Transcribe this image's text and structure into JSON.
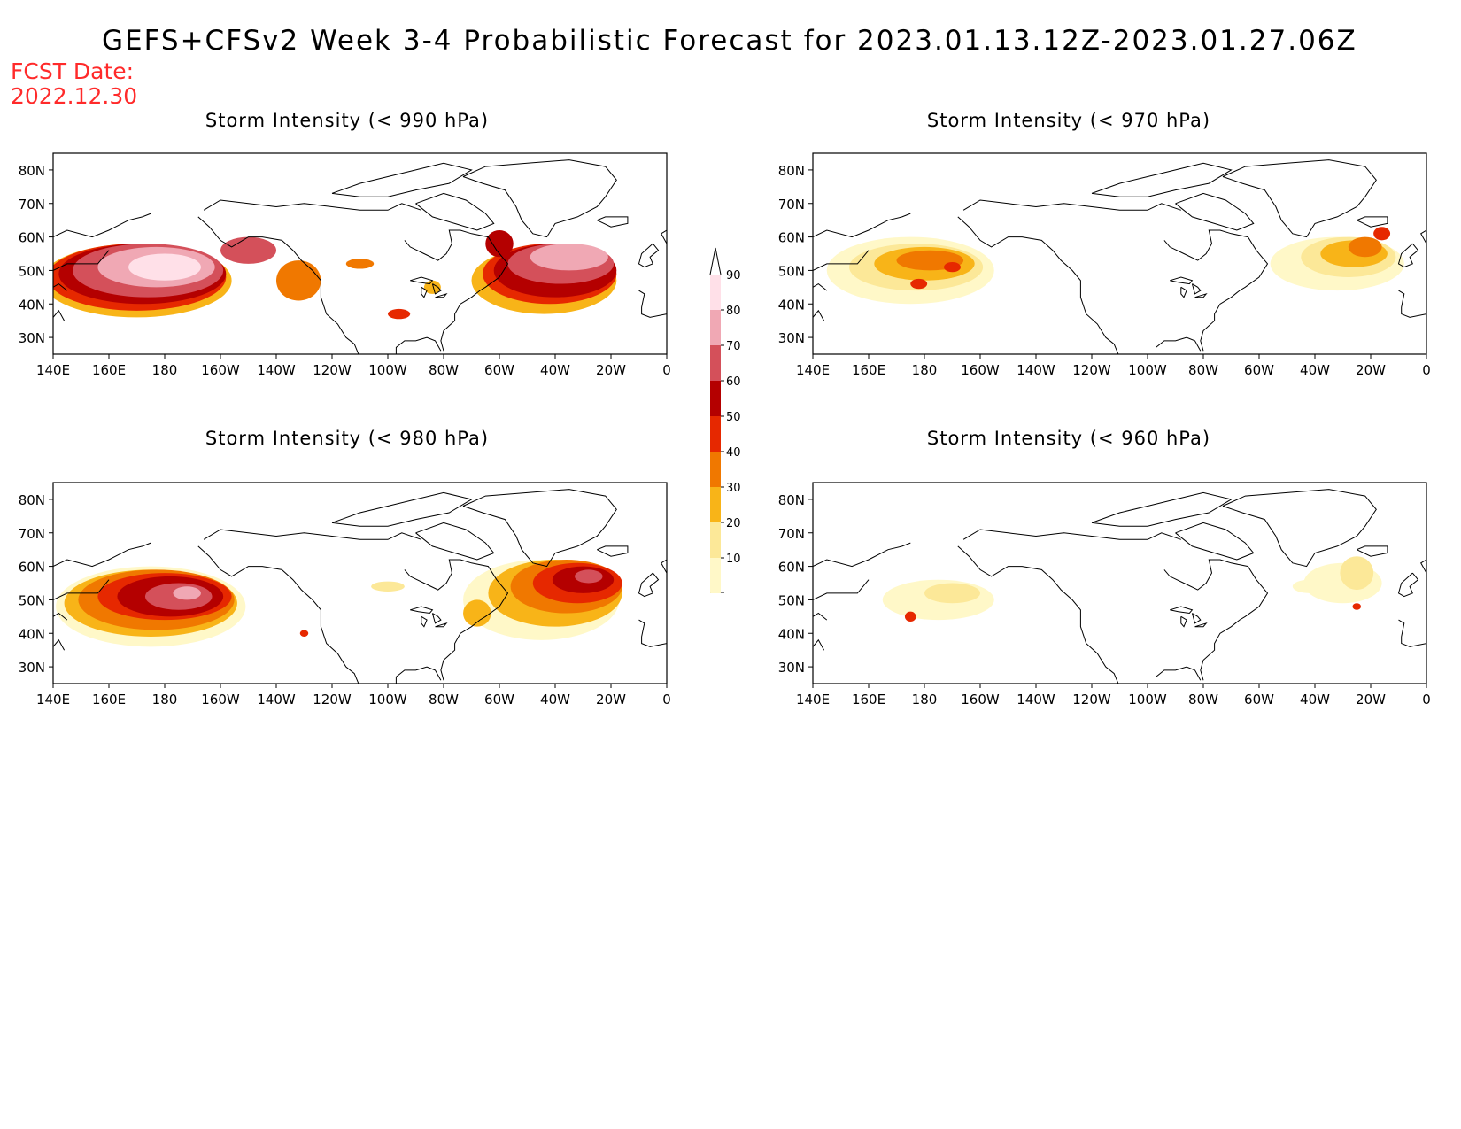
{
  "header": {
    "title": "GEFS+CFSv2 Week 3-4 Probabilistic Forecast for 2023.01.13.12Z-2023.01.27.06Z",
    "fcst_label": "FCST Date:",
    "fcst_date": "2022.12.30"
  },
  "panels": [
    {
      "title": "Storm Intensity (< 990 hPa)"
    },
    {
      "title": "Storm Intensity (< 970 hPa)"
    },
    {
      "title": "Storm Intensity (< 980 hPa)"
    },
    {
      "title": "Storm Intensity (< 960 hPa)"
    }
  ],
  "axes": {
    "lat_labels": [
      "80N",
      "70N",
      "60N",
      "50N",
      "40N",
      "30N"
    ],
    "lon_labels": [
      "140E",
      "160E",
      "180",
      "160W",
      "140W",
      "120W",
      "100W",
      "80W",
      "60W",
      "40W",
      "20W",
      "0"
    ]
  },
  "colorbar": {
    "ticks": [
      "10",
      "20",
      "30",
      "40",
      "50",
      "60",
      "70",
      "80",
      "90"
    ],
    "colors": [
      "#fff8c8",
      "#fce898",
      "#f8b418",
      "#f07800",
      "#e62800",
      "#b40000",
      "#d4505a",
      "#f0a8b4",
      "#ffe0e8"
    ]
  },
  "map_extent": {
    "lon_range": [
      "140E",
      "0"
    ],
    "lat_range": [
      "25N",
      "85N"
    ]
  }
}
